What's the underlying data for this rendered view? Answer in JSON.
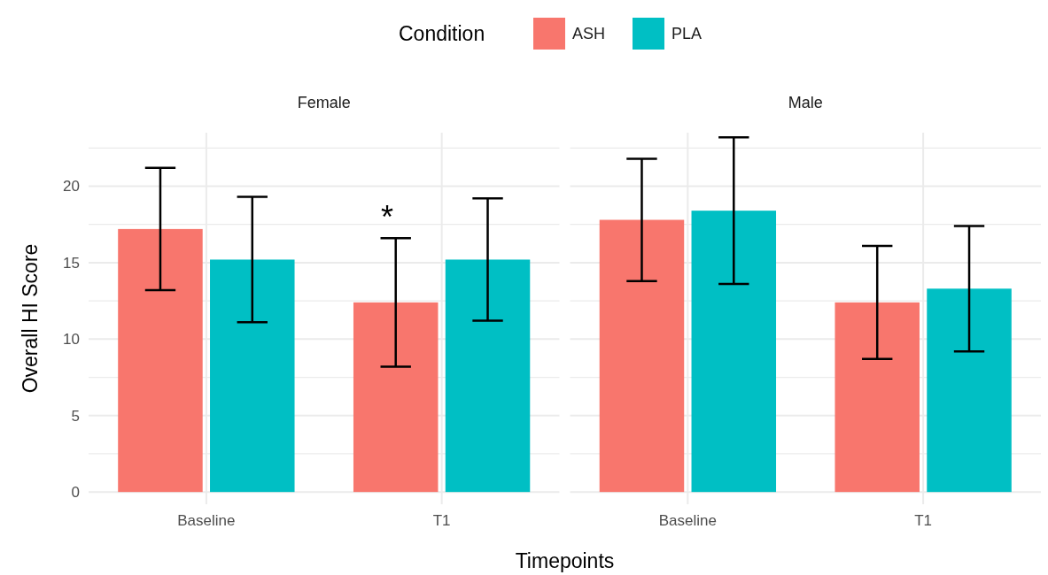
{
  "chart_data": [
    {
      "type": "bar",
      "title": "Female",
      "xlabel": "Timepoints",
      "ylabel": "Overall HI Score",
      "legend_title": "Condition",
      "legend": "top",
      "grid": true,
      "categories": [
        "Baseline",
        "T1"
      ],
      "series": [
        {
          "name": "ASH",
          "color": "#f8766d",
          "values": [
            17.2,
            12.4
          ],
          "errors": [
            4.0,
            4.2
          ]
        },
        {
          "name": "PLA",
          "color": "#00bfc4",
          "values": [
            15.2,
            15.2
          ],
          "errors": [
            4.1,
            4.0
          ]
        }
      ],
      "ylim": [
        -0.8,
        23.5
      ],
      "yticks": [
        0,
        {
          "value": 2.5,
          "label": null
        },
        5,
        {
          "value": 7.5,
          "label": null
        },
        10,
        {
          "value": 12.5,
          "label": null
        },
        15,
        {
          "value": 17.5,
          "label": null
        },
        20,
        {
          "value": 22.5,
          "label": null
        }
      ],
      "annotations": [
        "*"
      ]
    },
    {
      "type": "bar",
      "title": "Male",
      "grid": true,
      "tick_labels": "x",
      "categories": [
        "Baseline",
        "T1"
      ],
      "series": [
        {
          "color": "#f8766d",
          "values": [
            17.8,
            12.4
          ],
          "errors": [
            4.0,
            3.7
          ]
        },
        {
          "color": "#00bfc4",
          "values": [
            18.4,
            13.3
          ],
          "errors": [
            4.8,
            4.1
          ]
        }
      ],
      "ylim": [
        -0.8,
        23.5
      ],
      "yticks": [
        0,
        {
          "value": 2.5,
          "label": null
        },
        5,
        {
          "value": 7.5,
          "label": null
        },
        10,
        {
          "value": 12.5,
          "label": null
        },
        15,
        {
          "value": 17.5,
          "label": null
        },
        20,
        {
          "value": 22.5,
          "label": null
        }
      ]
    }
  ]
}
